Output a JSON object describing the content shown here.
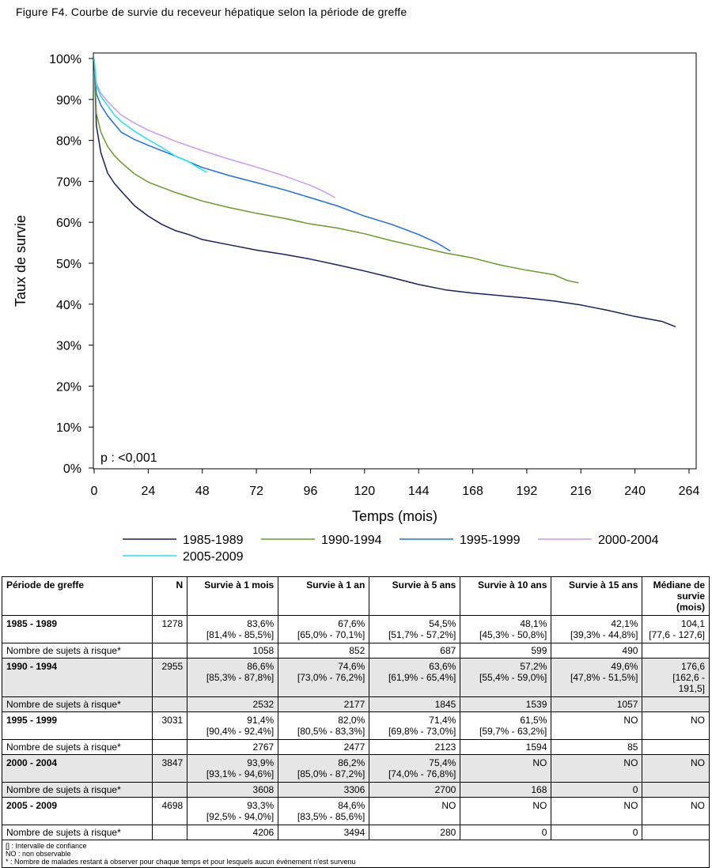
{
  "figure_title": "Figure F4. Courbe de survie du receveur hépatique selon la période de greffe",
  "chart_data": {
    "type": "line",
    "xlabel": "Temps (mois)",
    "ylabel": "Taux de survie",
    "xlim": [
      0,
      264
    ],
    "ylim": [
      0,
      100
    ],
    "x_ticks": [
      0,
      24,
      48,
      72,
      96,
      120,
      144,
      168,
      192,
      216,
      240,
      264
    ],
    "y_ticks": [
      0,
      10,
      20,
      30,
      40,
      50,
      60,
      70,
      80,
      90,
      100
    ],
    "y_tick_labels": [
      "0%",
      "10%",
      "20%",
      "30%",
      "40%",
      "50%",
      "60%",
      "70%",
      "80%",
      "90%",
      "100%"
    ],
    "annotation": "p : <0,001",
    "legend_placement": "bottom",
    "series": [
      {
        "name": "1985-1989",
        "color": "#1a1f5e",
        "points": [
          [
            0,
            100
          ],
          [
            1,
            83.6
          ],
          [
            3,
            77
          ],
          [
            6,
            72
          ],
          [
            9,
            69.5
          ],
          [
            12,
            67.6
          ],
          [
            18,
            64
          ],
          [
            24,
            61.5
          ],
          [
            30,
            59.5
          ],
          [
            36,
            58
          ],
          [
            42,
            57
          ],
          [
            48,
            55.8
          ],
          [
            60,
            54.5
          ],
          [
            72,
            53.2
          ],
          [
            84,
            52.2
          ],
          [
            96,
            51
          ],
          [
            108,
            49.6
          ],
          [
            120,
            48.1
          ],
          [
            132,
            46.5
          ],
          [
            144,
            44.8
          ],
          [
            156,
            43.5
          ],
          [
            168,
            42.7
          ],
          [
            180,
            42.1
          ],
          [
            192,
            41.5
          ],
          [
            204,
            40.8
          ],
          [
            216,
            39.8
          ],
          [
            228,
            38.5
          ],
          [
            240,
            37
          ],
          [
            252,
            35.8
          ],
          [
            258,
            34.5
          ]
        ]
      },
      {
        "name": "1990-1994",
        "color": "#6b9a2c",
        "points": [
          [
            0,
            100
          ],
          [
            1,
            86.6
          ],
          [
            3,
            82
          ],
          [
            6,
            78.5
          ],
          [
            9,
            76.3
          ],
          [
            12,
            74.6
          ],
          [
            18,
            71.8
          ],
          [
            24,
            69.8
          ],
          [
            36,
            67.3
          ],
          [
            48,
            65.2
          ],
          [
            60,
            63.6
          ],
          [
            72,
            62.2
          ],
          [
            84,
            61
          ],
          [
            96,
            59.6
          ],
          [
            108,
            58.6
          ],
          [
            120,
            57.2
          ],
          [
            132,
            55.5
          ],
          [
            144,
            54
          ],
          [
            156,
            52.5
          ],
          [
            168,
            51.3
          ],
          [
            180,
            49.6
          ],
          [
            192,
            48.3
          ],
          [
            204,
            47.2
          ],
          [
            210,
            45.8
          ],
          [
            215,
            45.2
          ]
        ]
      },
      {
        "name": "1995-1999",
        "color": "#1f6fe0",
        "points": [
          [
            0,
            100
          ],
          [
            1,
            91.4
          ],
          [
            3,
            88.6
          ],
          [
            6,
            86
          ],
          [
            9,
            84
          ],
          [
            12,
            82
          ],
          [
            18,
            80.2
          ],
          [
            24,
            78.8
          ],
          [
            36,
            76.2
          ],
          [
            48,
            73.4
          ],
          [
            60,
            71.4
          ],
          [
            72,
            69.7
          ],
          [
            84,
            68
          ],
          [
            96,
            66
          ],
          [
            108,
            64
          ],
          [
            120,
            61.5
          ],
          [
            132,
            59.5
          ],
          [
            144,
            57
          ],
          [
            152,
            55
          ],
          [
            158,
            53
          ]
        ]
      },
      {
        "name": "2000-2004",
        "color": "#c89cf0",
        "points": [
          [
            0,
            100
          ],
          [
            1,
            93.9
          ],
          [
            3,
            91.5
          ],
          [
            6,
            89.5
          ],
          [
            9,
            87.8
          ],
          [
            12,
            86.2
          ],
          [
            18,
            84.2
          ],
          [
            24,
            82.5
          ],
          [
            36,
            79.8
          ],
          [
            48,
            77.5
          ],
          [
            60,
            75.4
          ],
          [
            72,
            73.5
          ],
          [
            84,
            71.4
          ],
          [
            96,
            69
          ],
          [
            102,
            67.5
          ],
          [
            107,
            66
          ]
        ]
      },
      {
        "name": "2005-2009",
        "color": "#19e6ee",
        "points": [
          [
            0,
            100
          ],
          [
            1,
            93.3
          ],
          [
            3,
            90.8
          ],
          [
            6,
            88.5
          ],
          [
            9,
            86.2
          ],
          [
            12,
            84.6
          ],
          [
            18,
            82.2
          ],
          [
            24,
            80.2
          ],
          [
            30,
            78.3
          ],
          [
            36,
            76.2
          ],
          [
            42,
            74.8
          ],
          [
            46,
            73.4
          ],
          [
            50,
            72.2
          ]
        ]
      }
    ]
  },
  "table": {
    "headers": [
      "Période de greffe",
      "N",
      "Survie à 1 mois",
      "Survie à 1 an",
      "Survie à 5 ans",
      "Survie à 10 ans",
      "Survie à 15 ans",
      "Médiane de survie (mois)"
    ],
    "risk_label": "Nombre de sujets à risque*",
    "rows": [
      {
        "period": "1985 - 1989",
        "n": "1278",
        "values": [
          "83,6%",
          "67,6%",
          "54,5%",
          "48,1%",
          "42,1%",
          "104,1"
        ],
        "ci": [
          "[81,4% - 85,5%]",
          "[65,0% - 70,1%]",
          "[51,7% - 57,2%]",
          "[45,3% - 50,8%]",
          "[39,3% - 44,8%]",
          "[77,6 - 127,6]"
        ],
        "risk": [
          "1058",
          "852",
          "687",
          "599",
          "490"
        ]
      },
      {
        "period": "1990 - 1994",
        "n": "2955",
        "values": [
          "86,6%",
          "74,6%",
          "63,6%",
          "57,2%",
          "49,6%",
          "176,6"
        ],
        "ci": [
          "[85,3% - 87,8%]",
          "[73,0% - 76,2%]",
          "[61,9% - 65,4%]",
          "[55,4% - 59,0%]",
          "[47,8% - 51,5%]",
          "[162,6 - 191,5]"
        ],
        "risk": [
          "2532",
          "2177",
          "1845",
          "1539",
          "1057"
        ]
      },
      {
        "period": "1995 - 1999",
        "n": "3031",
        "values": [
          "91,4%",
          "82,0%",
          "71,4%",
          "61,5%",
          "NO",
          "NO"
        ],
        "ci": [
          "[90,4% - 92,4%]",
          "[80,5% - 83,3%]",
          "[69,8% - 73,0%]",
          "[59,7% - 63,2%]",
          "",
          ""
        ],
        "risk": [
          "2767",
          "2477",
          "2123",
          "1594",
          "85"
        ]
      },
      {
        "period": "2000 - 2004",
        "n": "3847",
        "values": [
          "93,9%",
          "86,2%",
          "75,4%",
          "NO",
          "NO",
          "NO"
        ],
        "ci": [
          "[93,1% - 94,6%]",
          "[85,0% - 87,2%]",
          "[74,0% - 76,8%]",
          "",
          "",
          ""
        ],
        "risk": [
          "3608",
          "3306",
          "2700",
          "168",
          "0"
        ]
      },
      {
        "period": "2005 - 2009",
        "n": "4698",
        "values": [
          "93,3%",
          "84,6%",
          "NO",
          "NO",
          "NO",
          "NO"
        ],
        "ci": [
          "[92,5% - 94,0%]",
          "[83,5% - 85,6%]",
          "",
          "",
          "",
          ""
        ],
        "risk": [
          "4206",
          "3494",
          "280",
          "0",
          "0"
        ]
      }
    ],
    "footnotes": [
      "[] : Intervalle de confiance",
      "NO : non observable",
      "* : Nombre de malades restant à observer pour chaque temps et pour lesquels aucun évènement n'est survenu"
    ]
  }
}
